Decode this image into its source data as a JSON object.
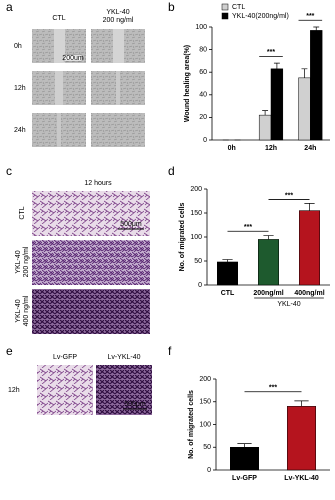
{
  "figure": {
    "panels": [
      "a",
      "b",
      "c",
      "d",
      "e",
      "f"
    ],
    "a": {
      "columns": [
        "CTL",
        [
          "YKL-40",
          "200 ng/ml"
        ]
      ],
      "rows": [
        "0h",
        "12h",
        "24h"
      ],
      "scale": "200um"
    },
    "c": {
      "title": "12 hours",
      "rows": [
        [
          "CTL"
        ],
        [
          "YKL-40",
          "200 ng/ml"
        ],
        [
          "YKL-40",
          "400 ng/ml"
        ]
      ],
      "scale": "500μm"
    },
    "e": {
      "columns": [
        "Lv-GFP",
        "Lv-YKL-40"
      ],
      "row": "12h",
      "scale": "500μm"
    }
  },
  "chart_data": [
    {
      "type": "bar",
      "ylabel": "Wound healing area(%)",
      "categories": [
        "0h",
        "12h",
        "24h"
      ],
      "series": [
        {
          "name": "CTL",
          "color": "#d0d0d0",
          "values": [
            0,
            22,
            55
          ],
          "errors": [
            0,
            4,
            8
          ]
        },
        {
          "name": "YKL-40(200ng/ml)",
          "color": "#000000",
          "values": [
            0,
            63,
            97
          ],
          "errors": [
            0,
            5,
            3
          ]
        }
      ],
      "ylim": [
        0,
        100
      ],
      "yticks": [
        0,
        20,
        40,
        60,
        80,
        100
      ],
      "legend": "upper left",
      "annotations": [
        "***",
        "***"
      ]
    },
    {
      "type": "bar",
      "ylabel": "No. of migrated cells",
      "categories": [
        "CTL",
        "200ng/ml",
        "400ng/ml"
      ],
      "values": [
        48,
        95,
        155
      ],
      "errors": [
        5,
        8,
        15
      ],
      "colors": [
        "#000000",
        "#1e5a2e",
        "#b5141e"
      ],
      "group_label": "YKL-40",
      "ylim": [
        0,
        200
      ],
      "yticks": [
        0,
        50,
        100,
        150,
        200
      ],
      "annotations": [
        "***",
        "***"
      ]
    },
    {
      "type": "bar",
      "ylabel": "No. of migrated cells",
      "categories": [
        "Lv-GFP",
        "Lv-YKL-40"
      ],
      "values": [
        50,
        140
      ],
      "errors": [
        8,
        12
      ],
      "colors": [
        "#000000",
        "#b5141e"
      ],
      "ylim": [
        0,
        200
      ],
      "yticks": [
        0,
        50,
        100,
        150,
        200
      ],
      "annotations": [
        "***"
      ]
    }
  ]
}
